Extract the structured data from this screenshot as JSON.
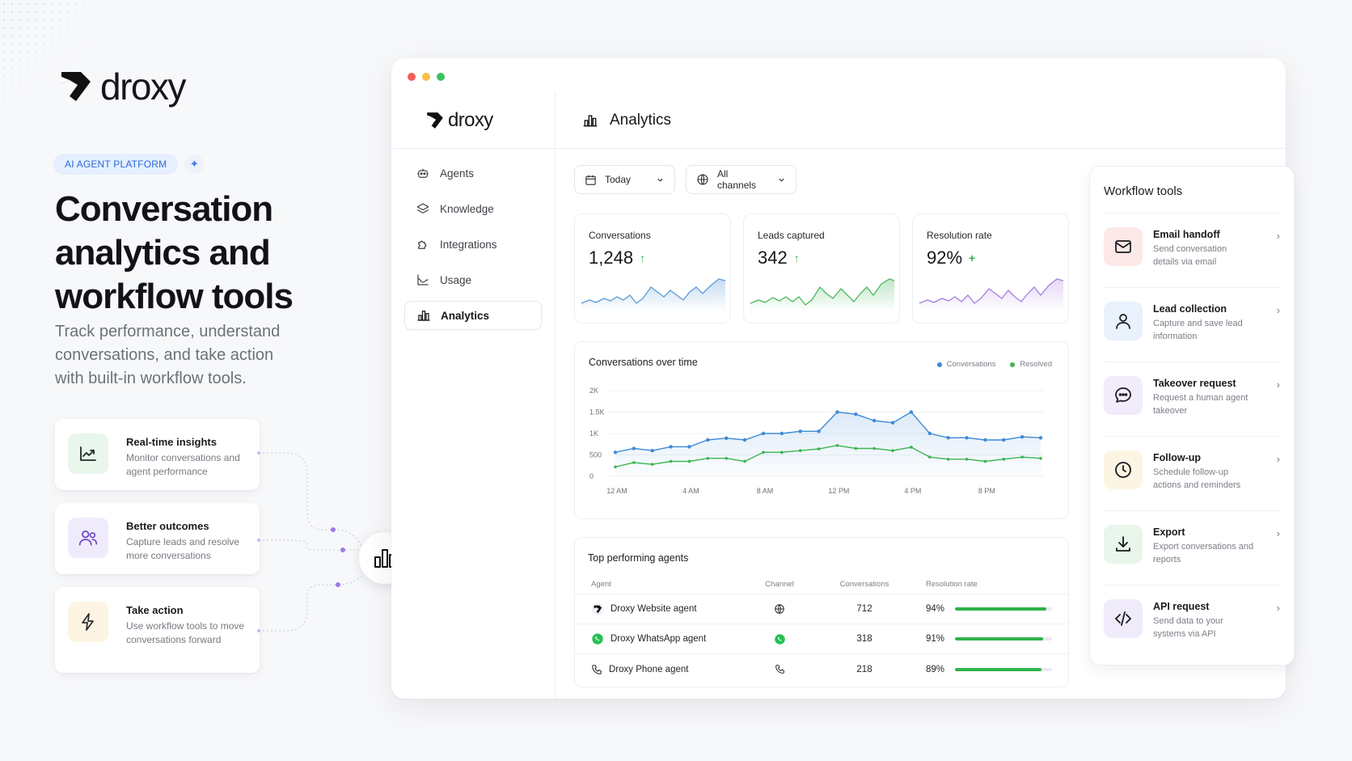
{
  "brand": {
    "name": "droxy"
  },
  "hero": {
    "badge": "AI AGENT PLATFORM",
    "title": "Conversation analytics and workflow tools",
    "subtitle": "Track performance, understand conversations, and take action with built-in workflow tools."
  },
  "features": [
    {
      "title": "Real-time insights",
      "desc": "Monitor conversations and agent performance",
      "icon": "trend-chart-icon"
    },
    {
      "title": "Better outcomes",
      "desc": "Capture leads and resolve more conversations",
      "icon": "users-icon"
    },
    {
      "title": "Take action",
      "desc": "Use workflow tools to move conversations forward",
      "icon": "lightning-icon"
    }
  ],
  "window": {
    "brand": "droxy",
    "nav": [
      {
        "label": "Agents",
        "icon": "robot-icon"
      },
      {
        "label": "Knowledge",
        "icon": "layers-icon"
      },
      {
        "label": "Integrations",
        "icon": "puzzle-icon"
      },
      {
        "label": "Usage",
        "icon": "usage-chart-icon"
      },
      {
        "label": "Analytics",
        "icon": "bar-chart-icon",
        "active": true
      }
    ],
    "header": {
      "title": "Analytics"
    },
    "filters": {
      "date": "Today",
      "channel": "All channels"
    },
    "stats": [
      {
        "label": "Conversations",
        "value": "1,248",
        "trend": "↑",
        "color": "#5b9bd5"
      },
      {
        "label": "Leads captured",
        "value": "342",
        "trend": "↑",
        "color": "#4cb860"
      },
      {
        "label": "Resolution rate",
        "value": "92%",
        "trend": "+",
        "color": "#a57ce0"
      }
    ],
    "chart": {
      "title": "Conversations over time",
      "legend": [
        "Conversations",
        "Resolved"
      ]
    },
    "table": {
      "title": "Top performing agents",
      "headers": [
        "Agent",
        "Channel",
        "Conversations",
        "Resolution rate"
      ],
      "rows": [
        {
          "agent": "Droxy Website agent",
          "channel": "globe-icon",
          "conversations": "712",
          "rate": "94%",
          "rate_value": 0.94
        },
        {
          "agent": "Droxy WhatsApp agent",
          "channel": "whatsapp-icon",
          "conversations": "318",
          "rate": "91%",
          "rate_value": 0.91
        },
        {
          "agent": "Droxy Phone agent",
          "channel": "phone-icon",
          "conversations": "218",
          "rate": "89%",
          "rate_value": 0.89
        }
      ]
    }
  },
  "workflow": {
    "title": "Workflow tools",
    "items": [
      {
        "name": "Email handoff",
        "desc": "Send conversation details via email",
        "icon": "mail-icon"
      },
      {
        "name": "Lead collection",
        "desc": "Capture and save lead information",
        "icon": "user-icon"
      },
      {
        "name": "Takeover request",
        "desc": "Request a human agent takeover",
        "icon": "chat-bubble-icon"
      },
      {
        "name": "Follow-up",
        "desc": "Schedule follow-up actions and reminders",
        "icon": "clock-icon"
      },
      {
        "name": "Export",
        "desc": "Export conversations and reports",
        "icon": "download-icon"
      },
      {
        "name": "API request",
        "desc": "Send data to your systems via API",
        "icon": "code-icon"
      }
    ]
  },
  "chart_data": {
    "type": "line",
    "title": "Conversations over time",
    "x": [
      "12 AM",
      "1 AM",
      "2 AM",
      "3 AM",
      "4 AM",
      "5 AM",
      "6 AM",
      "7 AM",
      "8 AM",
      "9 AM",
      "10 AM",
      "11 AM",
      "12 PM",
      "1 PM",
      "2 PM",
      "3 PM",
      "4 PM",
      "5 PM",
      "6 PM",
      "7 PM",
      "8 PM",
      "9 PM",
      "10 PM",
      "11 PM"
    ],
    "xticks": [
      "12 AM",
      "4 AM",
      "8 AM",
      "12 PM",
      "4 PM",
      "8 PM"
    ],
    "yticks": [
      "0",
      "500",
      "1K",
      "1.5K",
      "2K"
    ],
    "ylim": [
      0,
      2000
    ],
    "series": [
      {
        "name": "Conversations",
        "color": "#3e8ad6",
        "values": [
          560,
          650,
          600,
          690,
          690,
          850,
          890,
          850,
          1000,
          1000,
          1050,
          1050,
          1500,
          1450,
          1300,
          1250,
          1500,
          1000,
          900,
          900,
          850,
          850,
          920,
          900
        ]
      },
      {
        "name": "Resolved",
        "color": "#3db552",
        "values": [
          220,
          320,
          280,
          350,
          350,
          420,
          420,
          350,
          560,
          560,
          600,
          640,
          720,
          650,
          650,
          600,
          680,
          450,
          400,
          400,
          350,
          400,
          450,
          420
        ]
      }
    ],
    "grid": true,
    "legend": "top-right"
  }
}
